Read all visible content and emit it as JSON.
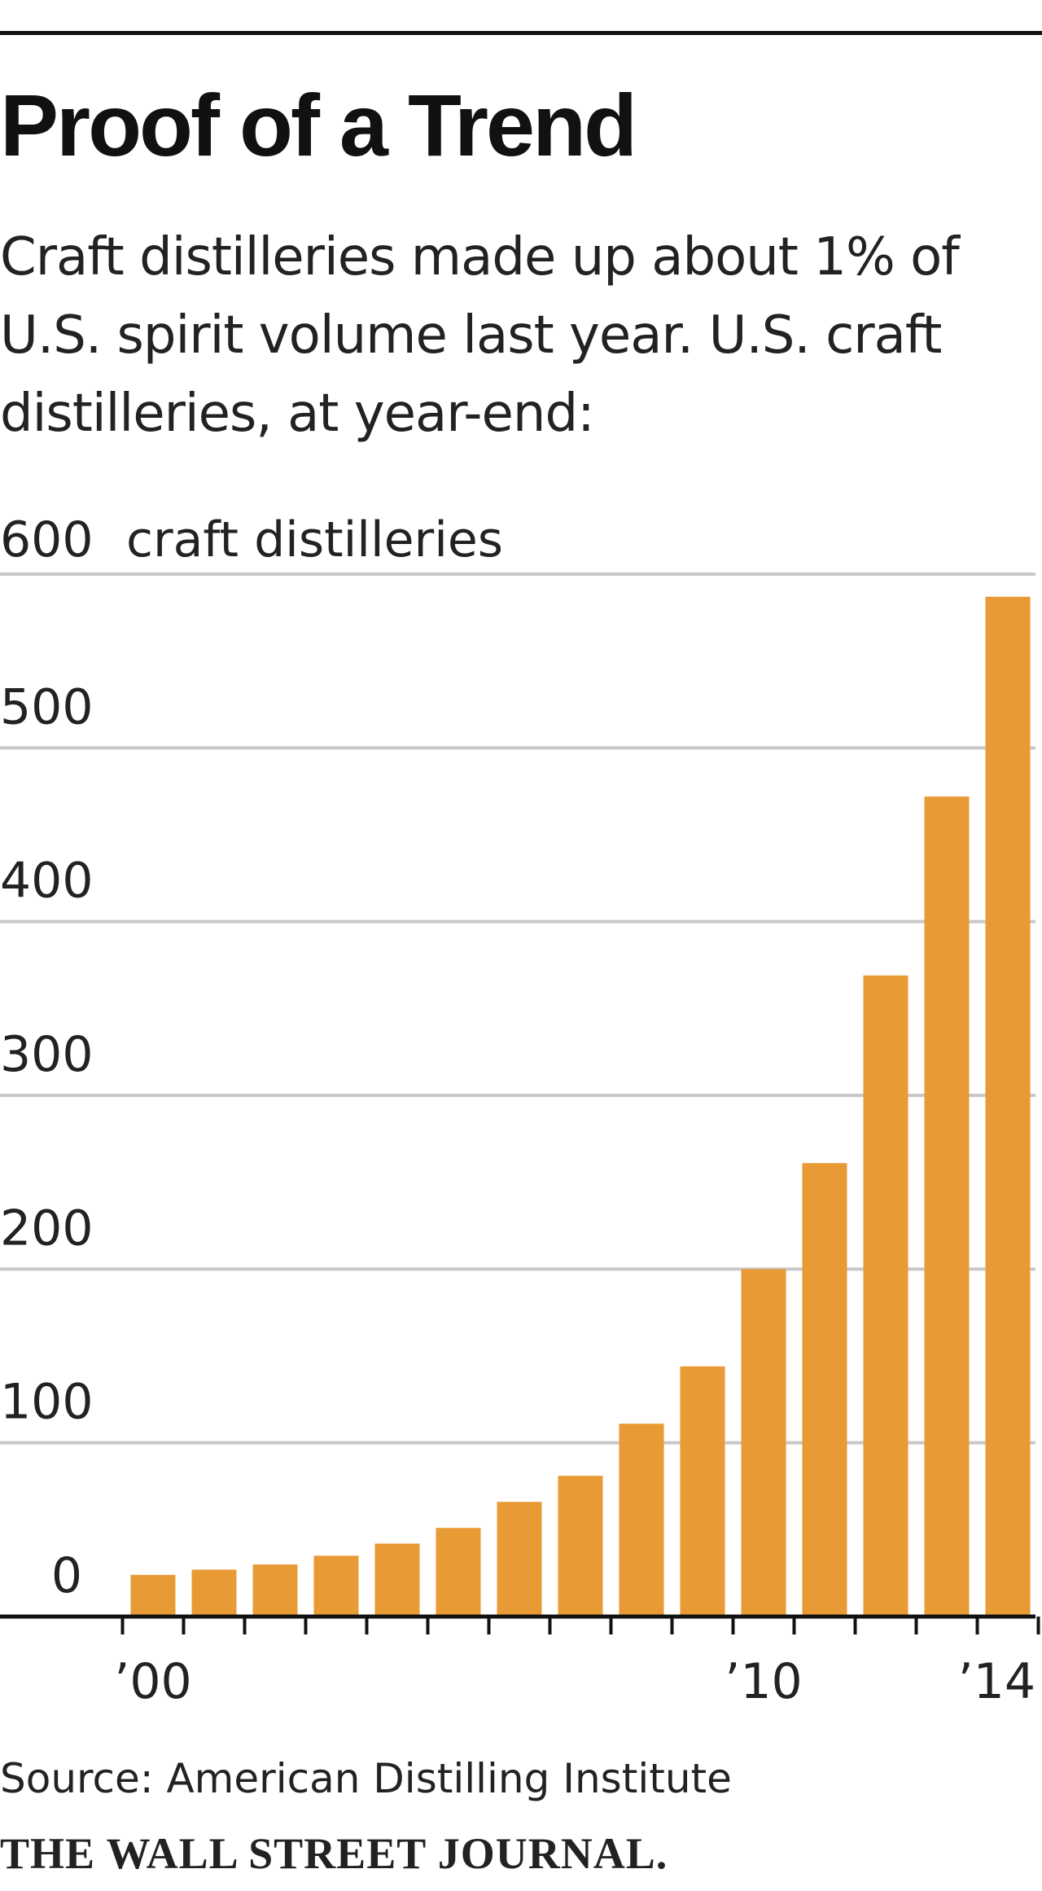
{
  "header": {
    "title": "Proof of a Trend",
    "subtitle": "Craft distilleries made up about 1% of U.S. spirit volume last year. U.S. craft distilleries, at year-end:"
  },
  "footer": {
    "source": "Source: American Distilling Institute",
    "credit": "THE WALL STREET JOURNAL."
  },
  "chart_data": {
    "type": "bar",
    "title": "Proof of a Trend",
    "unit_label": "craft distilleries",
    "categories": [
      "2000",
      "2001",
      "2002",
      "2003",
      "2004",
      "2005",
      "2006",
      "2007",
      "2008",
      "2009",
      "2010",
      "2011",
      "2012",
      "2013",
      "2014"
    ],
    "x_tick_labels": [
      {
        "category": "2000",
        "label": "’00"
      },
      {
        "category": "2010",
        "label": "’10"
      },
      {
        "category": "2014",
        "label": "’14"
      }
    ],
    "values": [
      24,
      27,
      30,
      35,
      42,
      51,
      66,
      81,
      111,
      144,
      200,
      261,
      369,
      472,
      587
    ],
    "ylim": [
      0,
      600
    ],
    "yticks": [
      0,
      100,
      200,
      300,
      400,
      500,
      600
    ],
    "grid": true,
    "bar_color": "#e89a35",
    "grid_color": "#c8c8c8",
    "axis_color": "#111111"
  }
}
